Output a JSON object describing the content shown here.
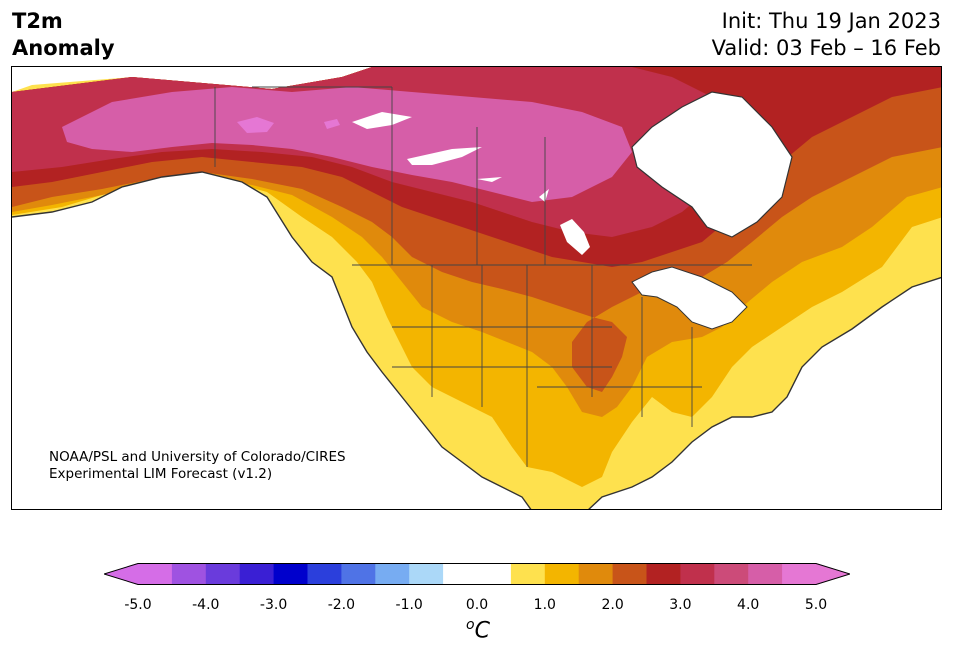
{
  "header": {
    "title_line1": "T2m",
    "title_line2": "Anomaly",
    "init": "Init: Thu 19 Jan 2023",
    "valid": "Valid: 03 Feb – 16 Feb"
  },
  "credit": {
    "line1": "NOAA/PSL and University of Colorado/CIRES",
    "line2": "Experimental LIM Forecast (v1.2)"
  },
  "colorbar": {
    "unit_base": "C",
    "unit_sup": "o",
    "ticks": [
      "-5.0",
      "-4.0",
      "-3.0",
      "-2.0",
      "-1.0",
      "0.0",
      "1.0",
      "2.0",
      "3.0",
      "4.0",
      "5.0"
    ],
    "colors": [
      "#d56de7",
      "#9f52e1",
      "#6a3bdc",
      "#3a1fd4",
      "#0000cc",
      "#2b3fdc",
      "#4f73e6",
      "#77acf2",
      "#abd8f8",
      "#ffffff",
      "#ffffff",
      "#fee14e",
      "#f3b500",
      "#e08a0c",
      "#c85419",
      "#b22222",
      "#c0304c",
      "#cc4b79",
      "#d65ea8",
      "#e577d4"
    ],
    "under_color": "#d56de7",
    "over_color": "#e577d4"
  }
}
